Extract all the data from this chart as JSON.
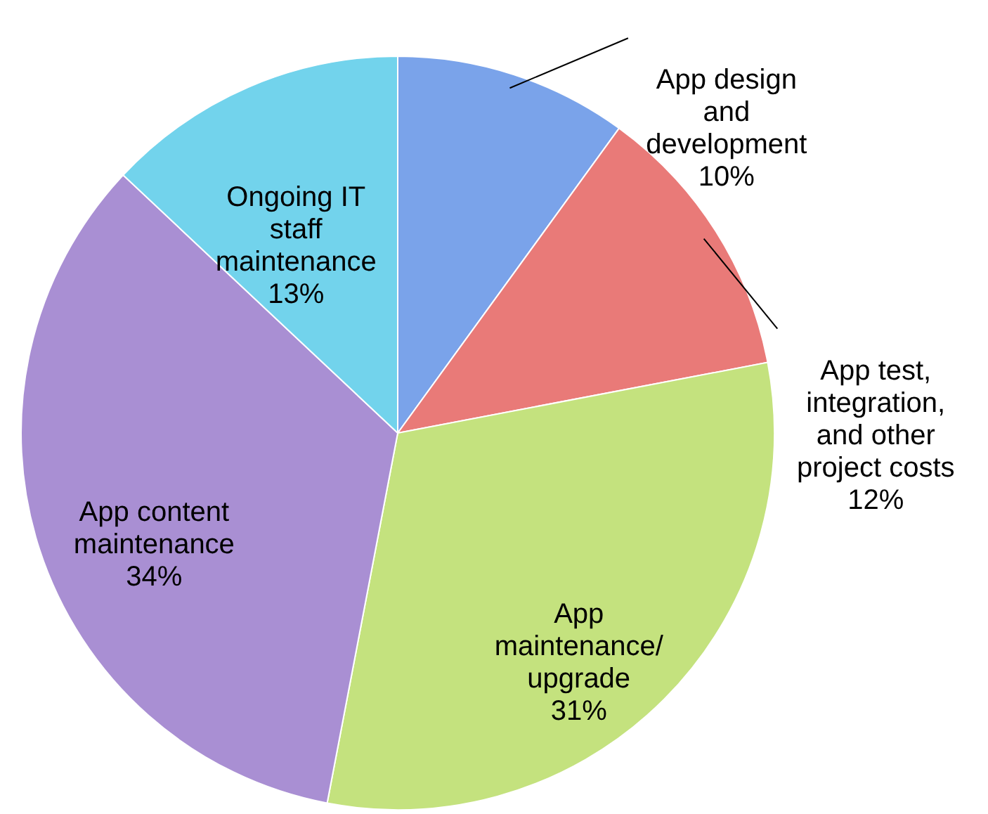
{
  "chart_data": {
    "type": "pie",
    "categories": [
      "App design and development",
      "App test, integration, and other project costs",
      "App maintenance/ upgrade",
      "App content maintenance",
      "Ongoing IT staff maintenance"
    ],
    "values": [
      10,
      12,
      31,
      34,
      13
    ],
    "value_labels": [
      "10%",
      "12%",
      "31%",
      "34%",
      "13%"
    ],
    "colors": [
      "#7aa3ea",
      "#e97a78",
      "#c4e27e",
      "#a98fd3",
      "#72d3ec"
    ]
  }
}
